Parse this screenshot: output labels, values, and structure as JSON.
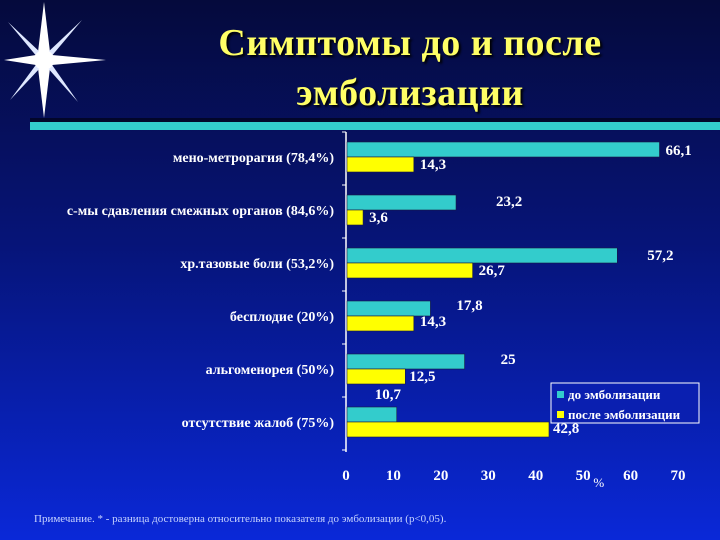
{
  "slide": {
    "title_line1": "Симптомы до и после",
    "title_line2": "эмболизации",
    "note": "Примечание. * - разница достоверна относительно показателя до эмболизации (р<0,05).",
    "colors": {
      "title": "#ffff66",
      "before": "#33cccc",
      "after": "#ffff00",
      "background": "#0a28d8"
    }
  },
  "chart_data": {
    "type": "bar",
    "orientation": "horizontal",
    "categories": [
      "мено-метрорагия (78,4%)",
      "с-мы сдавления смежных органов (84,6%)",
      "хр.тазовые боли (53,2%)",
      "бесплодие (20%)",
      "альгоменорея (50%)",
      "отсутствие жалоб (75%)"
    ],
    "series": [
      {
        "name": "до эмболизации",
        "color": "#33cccc",
        "values": [
          66.1,
          23.2,
          57.2,
          17.8,
          25,
          10.7
        ]
      },
      {
        "name": "после эмболизации",
        "color": "#ffff00",
        "values": [
          14.3,
          3.6,
          26.7,
          14.3,
          12.5,
          42.8
        ]
      }
    ],
    "data_labels": [
      [
        "66,1",
        "23,2",
        "57,2",
        "17,8",
        "25",
        "10,7"
      ],
      [
        "14,3",
        "3,6",
        "26,7",
        "14,3",
        "12,5",
        "42,8"
      ]
    ],
    "x_ticks": [
      0,
      10,
      20,
      30,
      40,
      50,
      60,
      70
    ],
    "xlim": [
      0,
      70
    ],
    "xlabel": "%",
    "legend_position": "bottom-right",
    "grid": false
  }
}
